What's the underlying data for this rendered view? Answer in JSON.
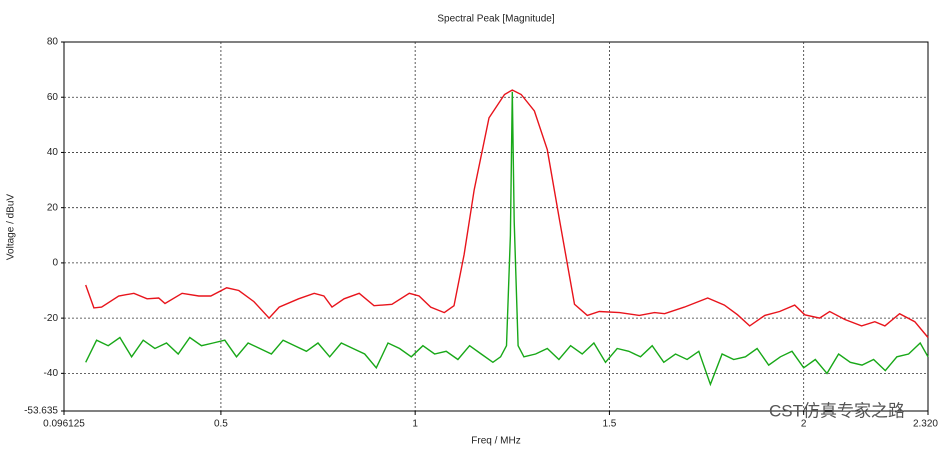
{
  "chart_data": {
    "type": "line",
    "title": "Spectral Peak [Magnitude]",
    "x_label": "Freq / MHz",
    "y_label": "Voltage / dBuV",
    "watermark": "CST仿真专家之路",
    "xlim": [
      0.096125,
      2.32
    ],
    "xticks": [
      0.096125,
      0.5,
      1,
      1.5,
      2,
      {
        "value": 2.32,
        "label": "2.320"
      }
    ],
    "ylim": [
      -53.635,
      80
    ],
    "yticks": [
      -53.635,
      -40,
      -20,
      0,
      20,
      40,
      60,
      80
    ],
    "grid": true,
    "series": [
      {
        "color": "#e8141c",
        "x": [
          0.152,
          0.173,
          0.193,
          0.237,
          0.276,
          0.31,
          0.34,
          0.356,
          0.4,
          0.443,
          0.474,
          0.515,
          0.546,
          0.585,
          0.624,
          0.65,
          0.7,
          0.74,
          0.765,
          0.786,
          0.817,
          0.856,
          0.894,
          0.94,
          0.985,
          1.01,
          1.04,
          1.075,
          1.1,
          1.126,
          1.152,
          1.19,
          1.23,
          1.25,
          1.273,
          1.307,
          1.34,
          1.371,
          1.41,
          1.443,
          1.474,
          1.526,
          1.577,
          1.616,
          1.642,
          1.693,
          1.753,
          1.796,
          1.83,
          1.861,
          1.9,
          1.938,
          1.977,
          2.003,
          2.041,
          2.067,
          2.106,
          2.149,
          2.183,
          2.209,
          2.247,
          2.286,
          2.32
        ],
        "values": [
          -8,
          -16.3,
          -16,
          -12,
          -11,
          -13,
          -12.7,
          -14.7,
          -11,
          -12,
          -12,
          -9,
          -10,
          -14,
          -20,
          -16,
          -13,
          -11,
          -12,
          -16,
          -13,
          -11,
          -15.5,
          -15,
          -11,
          -12,
          -16,
          -18,
          -15.5,
          3,
          26.5,
          52.5,
          61,
          62.6,
          61,
          55,
          41,
          16,
          -15,
          -19,
          -17.6,
          -18,
          -19,
          -18,
          -18.4,
          -16,
          -12.7,
          -15.3,
          -18.8,
          -22.8,
          -19,
          -17.6,
          -15.3,
          -18.8,
          -20,
          -17.6,
          -20.5,
          -22.8,
          -21.3,
          -22.8,
          -18.4,
          -21.3,
          -27
        ]
      },
      {
        "color": "#18a818",
        "x": [
          0.152,
          0.18,
          0.21,
          0.24,
          0.27,
          0.3,
          0.33,
          0.36,
          0.39,
          0.42,
          0.45,
          0.48,
          0.51,
          0.54,
          0.57,
          0.6,
          0.63,
          0.66,
          0.69,
          0.72,
          0.75,
          0.78,
          0.81,
          0.84,
          0.87,
          0.9,
          0.93,
          0.96,
          0.99,
          1.02,
          1.05,
          1.08,
          1.11,
          1.14,
          1.17,
          1.2,
          1.22,
          1.235,
          1.245,
          1.25,
          1.255,
          1.265,
          1.28,
          1.31,
          1.34,
          1.37,
          1.4,
          1.43,
          1.46,
          1.49,
          1.52,
          1.55,
          1.58,
          1.61,
          1.64,
          1.67,
          1.7,
          1.73,
          1.76,
          1.79,
          1.82,
          1.85,
          1.88,
          1.91,
          1.94,
          1.97,
          2.0,
          2.03,
          2.06,
          2.09,
          2.12,
          2.15,
          2.18,
          2.21,
          2.24,
          2.27,
          2.3,
          2.32
        ],
        "values": [
          -36,
          -28,
          -30,
          -27,
          -34,
          -28,
          -31,
          -29,
          -33,
          -27,
          -30,
          -29,
          -28,
          -34,
          -29,
          -31,
          -33,
          -28,
          -30,
          -32,
          -29,
          -34,
          -29,
          -31,
          -33,
          -38,
          -29,
          -31,
          -34,
          -30,
          -33,
          -32,
          -35,
          -30,
          -33,
          -36,
          -34,
          -30,
          10,
          62,
          15,
          -30,
          -34,
          -33,
          -31,
          -35,
          -30,
          -33,
          -29,
          -36,
          -31,
          -32,
          -34,
          -30,
          -36,
          -33,
          -35,
          -32,
          -44,
          -33,
          -35,
          -34,
          -31,
          -37,
          -34,
          -32,
          -38,
          -35,
          -40,
          -33,
          -36,
          -37,
          -35,
          -39,
          -34,
          -33,
          -29,
          -34
        ]
      }
    ]
  }
}
